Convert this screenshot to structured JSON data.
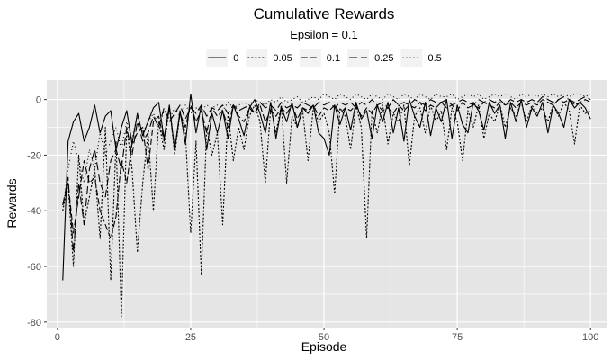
{
  "chart_data": {
    "type": "line",
    "title": "Cumulative Rewards",
    "subtitle": "Epsilon = 0.1",
    "xlabel": "Episode",
    "ylabel": "Rewards",
    "xlim": [
      -2,
      103
    ],
    "ylim": [
      -82,
      7
    ],
    "x_ticks": [
      0,
      25,
      50,
      75,
      100
    ],
    "y_ticks": [
      0,
      -20,
      -40,
      -60,
      -80
    ],
    "grid": true,
    "legend_position": "top",
    "background": "#e5e5e5",
    "grid_color": "#ffffff",
    "line_color": "#000000",
    "x": [
      1,
      2,
      3,
      4,
      5,
      6,
      7,
      8,
      9,
      10,
      11,
      12,
      13,
      14,
      15,
      16,
      17,
      18,
      19,
      20,
      21,
      22,
      23,
      24,
      25,
      26,
      27,
      28,
      29,
      30,
      31,
      32,
      33,
      34,
      35,
      36,
      37,
      38,
      39,
      40,
      41,
      42,
      43,
      44,
      45,
      46,
      47,
      48,
      49,
      50,
      51,
      52,
      53,
      54,
      55,
      56,
      57,
      58,
      59,
      60,
      61,
      62,
      63,
      64,
      65,
      66,
      67,
      68,
      69,
      70,
      71,
      72,
      73,
      74,
      75,
      76,
      77,
      78,
      79,
      80,
      81,
      82,
      83,
      84,
      85,
      86,
      87,
      88,
      89,
      90,
      91,
      92,
      93,
      94,
      95,
      96,
      97,
      98,
      99,
      100
    ],
    "series": [
      {
        "name": "0",
        "dash": "",
        "values": [
          -65,
          -15,
          -8,
          -5,
          -15,
          -10,
          -2,
          -12,
          -6,
          -4,
          -18,
          -10,
          -4,
          -16,
          -5,
          -13,
          -8,
          -3,
          -1,
          -14,
          -2,
          -18,
          -4,
          -16,
          2,
          -12,
          -2,
          -18,
          -5,
          -12,
          -4,
          -14,
          -2,
          -7,
          -13,
          -3,
          0,
          -5,
          -12,
          -1,
          -14,
          -3,
          -8,
          -1,
          -10,
          -3,
          -5,
          -2,
          -12,
          -14,
          -20,
          -2,
          -9,
          -3,
          -11,
          -1,
          -7,
          -4,
          -14,
          -2,
          -8,
          -1,
          -12,
          -3,
          -15,
          0,
          -6,
          -10,
          -1,
          -13,
          -3,
          -8,
          0,
          -14,
          -2,
          -9,
          -12,
          -1,
          -4,
          -11,
          -1,
          -5,
          -2,
          -14,
          -1,
          -8,
          0,
          -10,
          -3,
          -6,
          -1,
          -12,
          -2,
          -5,
          -10,
          0,
          -3,
          -1,
          -3,
          -7
        ]
      },
      {
        "name": "0.05",
        "dash": "2,2",
        "values": [
          -40,
          -30,
          -60,
          -20,
          -45,
          -35,
          -25,
          -50,
          -10,
          -65,
          -15,
          -78,
          -10,
          -25,
          -55,
          -30,
          -12,
          -40,
          -8,
          -18,
          -2,
          -20,
          -5,
          -12,
          -48,
          -15,
          -63,
          -10,
          -20,
          -12,
          -45,
          -5,
          -22,
          -10,
          -18,
          -6,
          -2,
          -8,
          -30,
          -3,
          -12,
          -2,
          -30,
          -6,
          -10,
          -4,
          -22,
          -3,
          -8,
          -5,
          -12,
          -34,
          -3,
          -6,
          -18,
          -2,
          -10,
          -50,
          -4,
          -12,
          -2,
          -16,
          -5,
          -8,
          -2,
          -24,
          -6,
          -3,
          -12,
          -2,
          -8,
          -4,
          -18,
          -3,
          -8,
          -22,
          -4,
          -10,
          -2,
          -14,
          -5,
          -8,
          -2,
          -10,
          -3,
          -6,
          -1,
          -8,
          -2,
          -5,
          -3,
          -8,
          -2,
          -6,
          -1,
          -4,
          -16,
          -2,
          -5,
          -4
        ]
      },
      {
        "name": "0.1",
        "dash": "7,3",
        "values": [
          -38,
          -30,
          -48,
          -35,
          -22,
          -30,
          -28,
          -40,
          -45,
          -50,
          -42,
          -22,
          -30,
          -16,
          -12,
          -10,
          -25,
          -8,
          -6,
          -15,
          -3,
          -18,
          -5,
          -10,
          -2,
          -8,
          -4,
          -12,
          -3,
          -6,
          -4,
          -10,
          -2,
          -6,
          -8,
          -3,
          -5,
          -2,
          -8,
          -4,
          -6,
          -3,
          -5,
          -2,
          -7,
          -3,
          -4,
          -2,
          -6,
          -3,
          -4,
          -2,
          -5,
          -3,
          -4,
          -2,
          -6,
          -3,
          -5,
          -2,
          -4,
          -3,
          -5,
          -2,
          -4,
          -2,
          -3,
          -1,
          -4,
          -2,
          -3,
          -1,
          -3,
          -2,
          -4,
          -1,
          -3,
          -2,
          -3,
          -1,
          -2,
          -3,
          -1,
          -2,
          -1,
          -3,
          -1,
          -2,
          -1,
          -2,
          0,
          -1,
          -2,
          0,
          -1,
          0,
          -2,
          -1,
          0,
          -1
        ]
      },
      {
        "name": "0.25",
        "dash": "9,4",
        "values": [
          -38,
          -28,
          -55,
          -30,
          -45,
          -25,
          -18,
          -30,
          -35,
          -22,
          -18,
          -25,
          -10,
          -20,
          -8,
          -15,
          -12,
          -6,
          -10,
          -3,
          -8,
          -5,
          -2,
          -7,
          -3,
          -5,
          -2,
          -6,
          -3,
          -4,
          -2,
          -5,
          -2,
          -4,
          -3,
          -2,
          -5,
          -1,
          -3,
          -2,
          -4,
          -1,
          -3,
          -2,
          -3,
          -1,
          -2,
          -3,
          -1,
          -2,
          -1,
          -3,
          -1,
          -2,
          -1,
          -3,
          -1,
          -2,
          0,
          -2,
          -1,
          -3,
          0,
          -2,
          -1,
          -2,
          0,
          -1,
          -2,
          0,
          -1,
          -1,
          0,
          -2,
          -1,
          0,
          -1,
          -2,
          0,
          -1,
          0,
          -1,
          0,
          -2,
          0,
          -1,
          0,
          -1,
          0,
          -1,
          1,
          0,
          -1,
          0,
          1,
          0,
          -1,
          0,
          1,
          0
        ]
      },
      {
        "name": "0.5",
        "dash": "1,3",
        "values": [
          -40,
          -25,
          -15,
          -22,
          -30,
          -18,
          -25,
          -12,
          -20,
          -15,
          -10,
          -18,
          -8,
          -14,
          -6,
          -12,
          -8,
          -5,
          -10,
          -4,
          -7,
          -3,
          -6,
          -2,
          -5,
          -3,
          -4,
          -2,
          -3,
          -2,
          -4,
          -1,
          -3,
          -2,
          -1,
          -2,
          0,
          -1,
          -2,
          0,
          -1,
          1,
          -1,
          0,
          1,
          -1,
          0,
          1,
          0,
          2,
          1,
          0,
          2,
          1,
          0,
          2,
          1,
          0,
          2,
          1,
          0,
          2,
          1,
          0,
          2,
          1,
          0,
          2,
          1,
          0,
          2,
          1,
          1,
          2,
          0,
          1,
          2,
          1,
          2,
          0,
          1,
          2,
          1,
          2,
          1,
          0,
          2,
          1,
          2,
          1,
          2,
          1,
          2,
          1,
          2,
          1,
          2,
          2,
          1,
          2
        ]
      }
    ]
  }
}
